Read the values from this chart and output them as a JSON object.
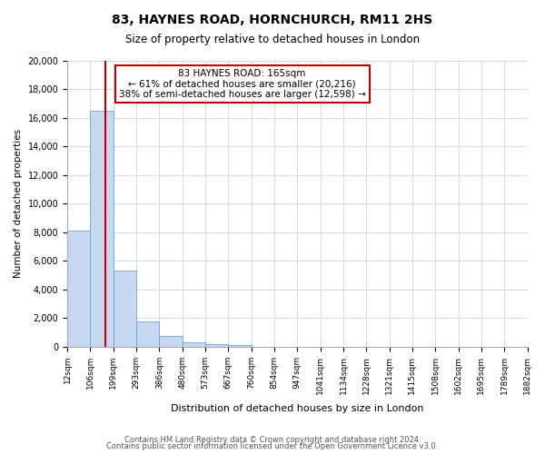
{
  "title": "83, HAYNES ROAD, HORNCHURCH, RM11 2HS",
  "subtitle": "Size of property relative to detached houses in London",
  "xlabel": "Distribution of detached houses by size in London",
  "ylabel": "Number of detached properties",
  "bar_values": [
    8100,
    16500,
    5300,
    1800,
    750,
    300,
    200,
    150,
    0,
    0,
    0,
    0,
    0,
    0,
    0,
    0,
    0,
    0,
    0,
    0
  ],
  "bin_labels": [
    "12sqm",
    "106sqm",
    "199sqm",
    "293sqm",
    "386sqm",
    "480sqm",
    "573sqm",
    "667sqm",
    "760sqm",
    "854sqm",
    "947sqm",
    "1041sqm",
    "1134sqm",
    "1228sqm",
    "1321sqm",
    "1415sqm",
    "1508sqm",
    "1602sqm",
    "1695sqm",
    "1789sqm",
    "1882sqm"
  ],
  "bar_color": "#c6d9f0",
  "bar_edge_color": "#5b9bd5",
  "property_line_color": "#c00000",
  "annotation_text": "83 HAYNES ROAD: 165sqm\n← 61% of detached houses are smaller (20,216)\n38% of semi-detached houses are larger (12,598) →",
  "annotation_box_color": "#ffffff",
  "annotation_box_edge_color": "#c00000",
  "ylim": [
    0,
    20000
  ],
  "yticks": [
    0,
    2000,
    4000,
    6000,
    8000,
    10000,
    12000,
    14000,
    16000,
    18000,
    20000
  ],
  "footer_line1": "Contains HM Land Registry data © Crown copyright and database right 2024.",
  "footer_line2": "Contains public sector information licensed under the Open Government Licence v3.0.",
  "background_color": "#ffffff",
  "grid_color": "#d0dce8"
}
